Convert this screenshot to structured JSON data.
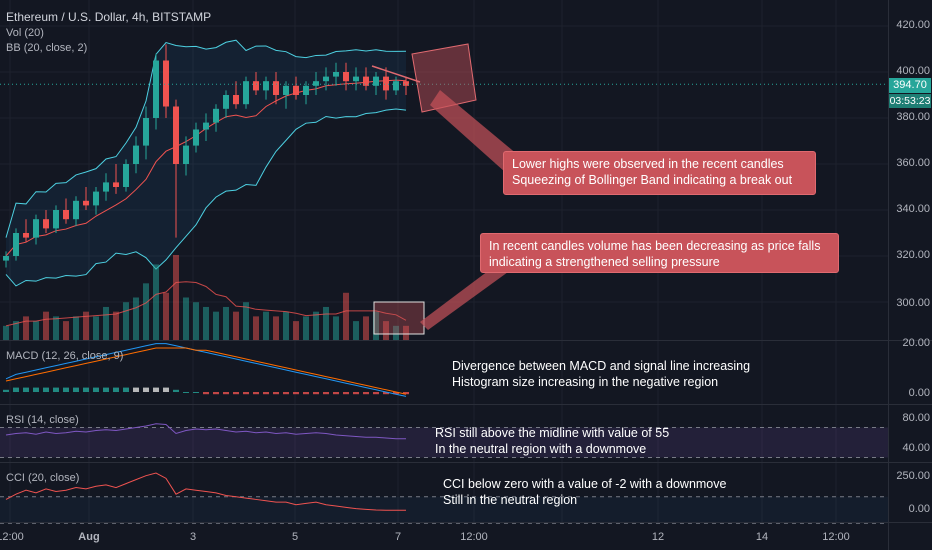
{
  "symbol_title": "Ethereum / U.S. Dollar, 4h, BITSTAMP",
  "price_pane": {
    "indicators": [
      "Vol (20)",
      "BB (20, close, 2)"
    ],
    "y_labels": [
      "420.00",
      "400.00",
      "380.00",
      "360.00",
      "340.00",
      "320.00",
      "300.00"
    ],
    "last_price": "394.70",
    "countdown": "03:53:23",
    "colors": {
      "up": "#26a69a",
      "down": "#ef5350",
      "bb": "#4dd0e1",
      "basis": "#ef5350",
      "tag_bg": "#26a69a",
      "timer_bg": "#26a69a"
    }
  },
  "macd_pane": {
    "legend": "MACD (12, 26, close, 9)",
    "y_labels": [
      "20.00",
      "0.00"
    ]
  },
  "rsi_pane": {
    "legend": "RSI (14, close)",
    "y_labels": [
      "80.00",
      "40.00"
    ],
    "color": "#7e57c2"
  },
  "cci_pane": {
    "legend": "CCI (20, close)",
    "y_labels": [
      "250.00",
      "0.00"
    ],
    "color": "#ef5350"
  },
  "x_labels": [
    "12:00",
    "Aug",
    "3",
    "5",
    "7",
    "12:00",
    "12",
    "14",
    "12:00"
  ],
  "annotations": {
    "note1": [
      "Lower highs were observed in the recent candles",
      "Squeezing of Bollinger Band indicating a break out"
    ],
    "note2": [
      "In recent candles volume has been decreasing as price falls",
      "indicating a strengthened selling pressure"
    ],
    "note3": [
      "Divergence between MACD and signal line increasing",
      "Histogram size increasing in the negative region"
    ],
    "note4": [
      "RSI still above the midline with value of 55",
      "In the neutral region with a downmove"
    ],
    "note5": [
      "CCI below zero with a value of -2 with a downmove",
      "Still in the neutral region"
    ]
  },
  "chart_data": {
    "type": "candlestick",
    "price": [
      {
        "o": 318,
        "h": 322,
        "l": 315,
        "c": 320
      },
      {
        "o": 320,
        "h": 332,
        "l": 318,
        "c": 330
      },
      {
        "o": 330,
        "h": 336,
        "l": 326,
        "c": 328
      },
      {
        "o": 328,
        "h": 338,
        "l": 325,
        "c": 336
      },
      {
        "o": 336,
        "h": 340,
        "l": 330,
        "c": 332
      },
      {
        "o": 332,
        "h": 342,
        "l": 330,
        "c": 340
      },
      {
        "o": 340,
        "h": 345,
        "l": 334,
        "c": 336
      },
      {
        "o": 336,
        "h": 346,
        "l": 333,
        "c": 344
      },
      {
        "o": 344,
        "h": 350,
        "l": 340,
        "c": 342
      },
      {
        "o": 342,
        "h": 350,
        "l": 338,
        "c": 348
      },
      {
        "o": 348,
        "h": 356,
        "l": 344,
        "c": 352
      },
      {
        "o": 352,
        "h": 360,
        "l": 347,
        "c": 350
      },
      {
        "o": 350,
        "h": 362,
        "l": 348,
        "c": 360
      },
      {
        "o": 360,
        "h": 372,
        "l": 356,
        "c": 368
      },
      {
        "o": 368,
        "h": 385,
        "l": 362,
        "c": 380
      },
      {
        "o": 380,
        "h": 408,
        "l": 375,
        "c": 405
      },
      {
        "o": 405,
        "h": 412,
        "l": 380,
        "c": 385
      },
      {
        "o": 385,
        "h": 388,
        "l": 328,
        "c": 360
      },
      {
        "o": 360,
        "h": 372,
        "l": 355,
        "c": 368
      },
      {
        "o": 368,
        "h": 378,
        "l": 365,
        "c": 375
      },
      {
        "o": 375,
        "h": 382,
        "l": 370,
        "c": 378
      },
      {
        "o": 378,
        "h": 386,
        "l": 374,
        "c": 384
      },
      {
        "o": 384,
        "h": 392,
        "l": 380,
        "c": 390
      },
      {
        "o": 390,
        "h": 396,
        "l": 384,
        "c": 386
      },
      {
        "o": 386,
        "h": 398,
        "l": 384,
        "c": 396
      },
      {
        "o": 396,
        "h": 400,
        "l": 390,
        "c": 392
      },
      {
        "o": 392,
        "h": 398,
        "l": 388,
        "c": 396
      },
      {
        "o": 396,
        "h": 400,
        "l": 386,
        "c": 390
      },
      {
        "o": 390,
        "h": 396,
        "l": 384,
        "c": 394
      },
      {
        "o": 394,
        "h": 398,
        "l": 388,
        "c": 390
      },
      {
        "o": 390,
        "h": 396,
        "l": 386,
        "c": 394
      },
      {
        "o": 394,
        "h": 400,
        "l": 390,
        "c": 396
      },
      {
        "o": 396,
        "h": 402,
        "l": 392,
        "c": 398
      },
      {
        "o": 398,
        "h": 404,
        "l": 394,
        "c": 400
      },
      {
        "o": 400,
        "h": 404,
        "l": 392,
        "c": 396
      },
      {
        "o": 396,
        "h": 402,
        "l": 392,
        "c": 398
      },
      {
        "o": 398,
        "h": 402,
        "l": 392,
        "c": 394
      },
      {
        "o": 394,
        "h": 400,
        "l": 390,
        "c": 398
      },
      {
        "o": 398,
        "h": 402,
        "l": 388,
        "c": 392
      },
      {
        "o": 392,
        "h": 398,
        "l": 390,
        "c": 396
      },
      {
        "o": 396,
        "h": 398,
        "l": 390,
        "c": 394
      }
    ],
    "volume": [
      3,
      4,
      5,
      4,
      6,
      5,
      4,
      5,
      6,
      5,
      7,
      6,
      8,
      9,
      12,
      16,
      10,
      18,
      9,
      8,
      7,
      6,
      7,
      6,
      8,
      5,
      6,
      5,
      6,
      4,
      5,
      6,
      7,
      5,
      10,
      4,
      5,
      6,
      4,
      3,
      3
    ],
    "macd": [
      6,
      8,
      9,
      10,
      11,
      12,
      13,
      14,
      15,
      16,
      17,
      18,
      19,
      20,
      21,
      22,
      22,
      21,
      20,
      19,
      18,
      17,
      16,
      15,
      14,
      13,
      12,
      11,
      10,
      9,
      8,
      7,
      6,
      5,
      4,
      3,
      2,
      1,
      0,
      -1,
      -2
    ],
    "macd_signal": [
      5,
      6,
      7,
      8,
      9,
      10,
      11,
      12,
      13,
      14,
      15,
      16,
      17,
      18,
      19,
      20,
      20,
      20,
      20,
      19,
      19,
      18,
      17,
      16,
      15,
      14,
      13,
      12,
      11,
      10,
      9,
      8,
      7,
      6,
      5,
      4,
      3,
      2,
      1,
      0,
      -1
    ],
    "macd_hist": [
      1,
      2,
      2,
      2,
      2,
      2,
      2,
      2,
      2,
      2,
      2,
      2,
      2,
      2,
      2,
      2,
      2,
      1,
      0,
      0,
      -1,
      -1,
      -1,
      -1,
      -1,
      -1,
      -1,
      -1,
      -1,
      -1,
      -1,
      -1,
      -1,
      -1,
      -1,
      -1,
      -1,
      -1,
      -1,
      -1,
      -1
    ],
    "rsi": [
      60,
      62,
      63,
      61,
      64,
      62,
      63,
      65,
      64,
      66,
      67,
      66,
      68,
      70,
      72,
      75,
      74,
      62,
      66,
      68,
      67,
      68,
      66,
      64,
      65,
      63,
      64,
      62,
      63,
      61,
      62,
      63,
      62,
      60,
      59,
      58,
      57,
      57,
      56,
      55,
      55
    ],
    "cci": [
      80,
      120,
      150,
      130,
      160,
      140,
      150,
      170,
      160,
      180,
      190,
      170,
      200,
      230,
      260,
      280,
      240,
      120,
      160,
      150,
      140,
      130,
      110,
      100,
      90,
      80,
      70,
      60,
      60,
      40,
      50,
      60,
      40,
      30,
      20,
      10,
      5,
      0,
      -2,
      -2,
      -2
    ]
  }
}
